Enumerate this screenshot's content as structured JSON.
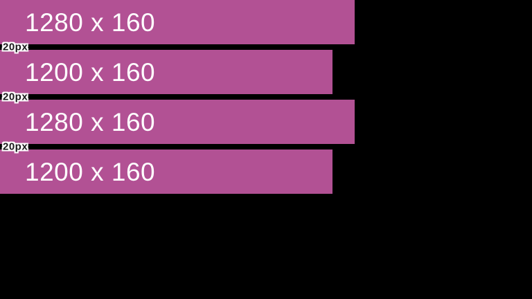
{
  "diagram": {
    "colors": {
      "background": "#000000",
      "bar_fill": "#b25194",
      "bar_text": "#ffffff",
      "gap_label_fill": "#1c1a1c",
      "gap_label_outline": "#ffffff"
    },
    "bars": [
      {
        "label": "1280 x 160",
        "width_px": "512px"
      },
      {
        "label": "1200 x 160",
        "width_px": "480px"
      },
      {
        "label": "1280 x 160",
        "width_px": "512px"
      },
      {
        "label": "1200 x 160",
        "width_px": "480px"
      }
    ],
    "gaps": [
      {
        "label": "20px"
      },
      {
        "label": "20px"
      },
      {
        "label": "20px"
      }
    ]
  }
}
